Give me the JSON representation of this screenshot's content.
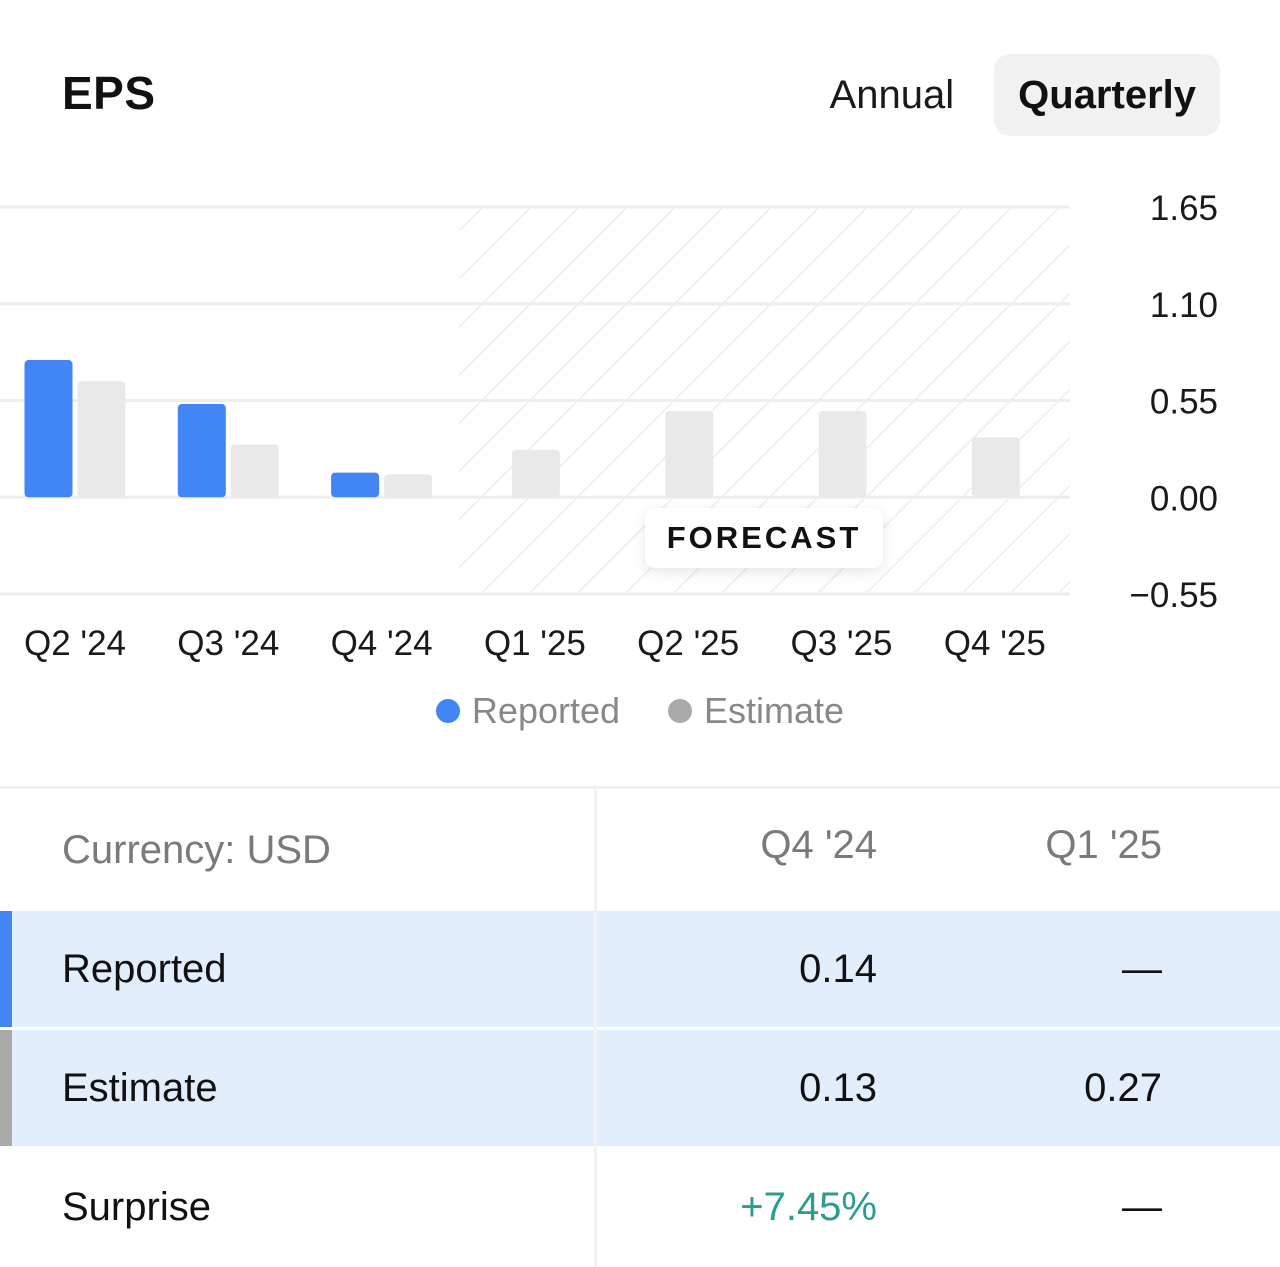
{
  "header": {
    "title": "EPS",
    "tabs": [
      {
        "label": "Annual",
        "active": false
      },
      {
        "label": "Quarterly",
        "active": true
      }
    ]
  },
  "colors": {
    "reported": "#4285f4",
    "estimate": "#e9e9e9",
    "legend_estimate_dot": "#aaaaaa",
    "positive": "#2a9d8f",
    "row_highlight": "#e3eefc"
  },
  "chart_data": {
    "type": "bar",
    "categories": [
      "Q2 '24",
      "Q3 '24",
      "Q4 '24",
      "Q1 '25",
      "Q2 '25",
      "Q3 '25",
      "Q4 '25"
    ],
    "series": [
      {
        "name": "Reported",
        "values": [
          0.78,
          0.53,
          0.14,
          null,
          null,
          null,
          null
        ]
      },
      {
        "name": "Estimate",
        "values": [
          0.66,
          0.3,
          0.13,
          0.27,
          0.49,
          0.49,
          0.34
        ]
      }
    ],
    "y_ticks": [
      "1.65",
      "1.10",
      "0.55",
      "0.00",
      "−0.55"
    ],
    "y_tick_values": [
      1.65,
      1.1,
      0.55,
      0.0,
      -0.55
    ],
    "ylim": [
      -0.55,
      1.65
    ],
    "forecast_start_index": 3,
    "forecast_label": "FORECAST",
    "grid": true,
    "legend_position": "bottom"
  },
  "legend": [
    {
      "label": "Reported",
      "color": "#4285f4"
    },
    {
      "label": "Estimate",
      "color": "#aaaaaa"
    }
  ],
  "table": {
    "currency_label": "Currency: USD",
    "columns": [
      "Q4 '24",
      "Q1 '25"
    ],
    "rows": [
      {
        "label": "Reported",
        "values": [
          "0.14",
          "—"
        ]
      },
      {
        "label": "Estimate",
        "values": [
          "0.13",
          "0.27"
        ]
      },
      {
        "label": "Surprise",
        "values": [
          "+7.45%",
          "—"
        ]
      }
    ]
  }
}
